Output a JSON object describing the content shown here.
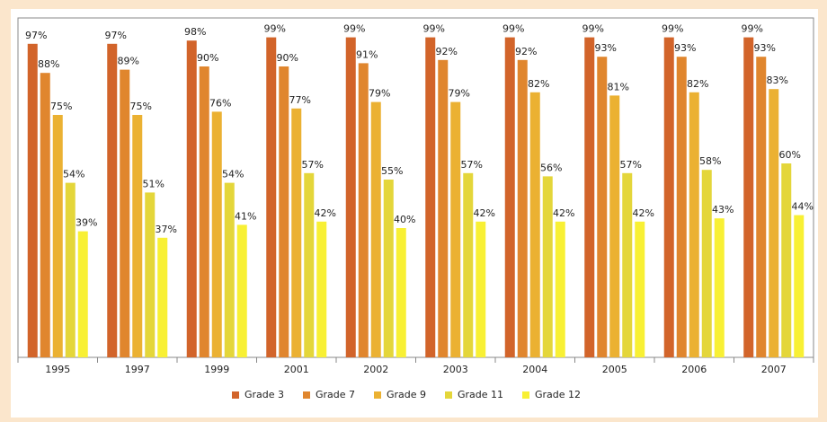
{
  "chart_data": {
    "type": "bar",
    "categories": [
      "1995",
      "1997",
      "1999",
      "2001",
      "2002",
      "2003",
      "2004",
      "2005",
      "2006",
      "2007"
    ],
    "ylim": [
      0,
      105
    ],
    "legend": "bottom",
    "series": [
      {
        "name": "Grade 3",
        "color": "#d2642a",
        "values": [
          97,
          97,
          98,
          99,
          99,
          99,
          99,
          99,
          99,
          99
        ],
        "value_labels": [
          "97%",
          "97%",
          "98%",
          "99%",
          "99%",
          "99%",
          "99%",
          "99%",
          "99%",
          "99%"
        ]
      },
      {
        "name": "Grade 7",
        "color": "#e0862e",
        "values": [
          88,
          89,
          90,
          90,
          91,
          92,
          92,
          93,
          93,
          93
        ],
        "value_labels": [
          "88%",
          "89%",
          "90%",
          "90%",
          "91%",
          "92%",
          "92%",
          "93%",
          "93%",
          "93%"
        ]
      },
      {
        "name": "Grade 9",
        "color": "#ebb132",
        "values": [
          75,
          75,
          76,
          77,
          79,
          79,
          82,
          81,
          82,
          83
        ],
        "value_labels": [
          "75%",
          "75%",
          "76%",
          "77%",
          "79%",
          "79%",
          "82%",
          "81%",
          "82%",
          "83%"
        ]
      },
      {
        "name": "Grade 11",
        "color": "#e4d63a",
        "values": [
          54,
          51,
          54,
          57,
          55,
          57,
          56,
          57,
          58,
          60
        ],
        "value_labels": [
          "54%",
          "51%",
          "54%",
          "57%",
          "55%",
          "57%",
          "56%",
          "57%",
          "58%",
          "60%"
        ]
      },
      {
        "name": "Grade 12",
        "color": "#f8f034",
        "values": [
          39,
          37,
          41,
          42,
          40,
          42,
          42,
          42,
          43,
          44
        ],
        "value_labels": [
          "39%",
          "37%",
          "41%",
          "42%",
          "40%",
          "42%",
          "42%",
          "42%",
          "43%",
          "44%"
        ]
      }
    ]
  }
}
